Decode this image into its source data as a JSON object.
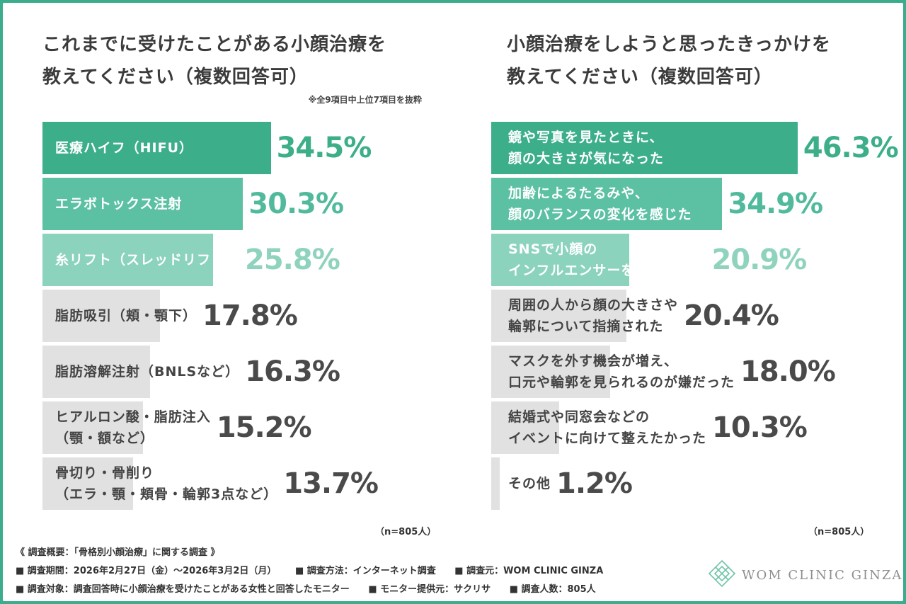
{
  "colors": {
    "border": "#3cad8c",
    "green_dark": "#3cae8a",
    "green_mid": "#5cc0a3",
    "green_light": "#8cd3bd",
    "gray": "#e1e1e1",
    "value_green_dark": "#3cae8a",
    "value_green_mid": "#52ba9c",
    "value_green_light": "#8fd3bf",
    "value_gray": "#4a4a4a"
  },
  "left": {
    "title": "これまでに受けたことがある小顔治療を\n教えてください（複数回答可）",
    "note": "※全9項目中上位7項目を抜粋",
    "sample": "（n=805人）"
  },
  "right": {
    "title": "小顔治療をしようと思ったきっかけを\n教えてください（複数回答可）",
    "sample": "（n=805人）"
  },
  "chart_data": [
    {
      "type": "bar",
      "orientation": "horizontal",
      "title": "これまでに受けたことがある小顔治療を教えてください（複数回答可）",
      "unit": "%",
      "xlim": [
        0,
        50
      ],
      "categories": [
        "医療ハイフ（HIFU）",
        "エラボトックス注射",
        "糸リフト（スレッドリフト）",
        "脂肪吸引（頬・顎下）",
        "脂肪溶解注射（BNLSなど）",
        "ヒアルロン酸・脂肪注入\n（顎・額など）",
        "骨切り・骨削り\n（エラ・顎・頬骨・輪郭3点など）"
      ],
      "values": [
        34.5,
        30.3,
        25.8,
        17.8,
        16.3,
        15.2,
        13.7
      ],
      "value_labels": [
        "34.5%",
        "30.3%",
        "25.8%",
        "17.8%",
        "16.3%",
        "15.2%",
        "13.7%"
      ],
      "n": "805"
    },
    {
      "type": "bar",
      "orientation": "horizontal",
      "title": "小顔治療をしようと思ったきっかけを教えてください（複数回答可）",
      "unit": "%",
      "xlim": [
        0,
        50
      ],
      "categories": [
        "鏡や写真を見たときに、\n顔の大きさが気になった",
        "加齢によるたるみや、\n顔のバランスの変化を感じた",
        "SNSで小顔の\nインフルエンサーを見て憧れた",
        "周囲の人から顔の大きさや\n輪郭について指摘された",
        "マスクを外す機会が増え、\n口元や輪郭を見られるのが嫌だった",
        "結婚式や同窓会などの\nイベントに向けて整えたかった",
        "その他"
      ],
      "values": [
        46.3,
        34.9,
        20.9,
        20.4,
        18.0,
        10.3,
        1.2
      ],
      "value_labels": [
        "46.3%",
        "34.9%",
        "20.9%",
        "20.4%",
        "18.0%",
        "10.3%",
        "1.2%"
      ],
      "n": "805"
    }
  ],
  "footer": {
    "heading": "《 調査概要：「骨格別小顔治療」に関する調査 》",
    "row1": [
      "■ 調査期間：2026年2月27日（金）〜2026年3月2日（月）",
      "■ 調査方法：インターネット調査",
      "■ 調査元：WOM CLINIC GINZA"
    ],
    "row2": [
      "■ 調査対象：調査回答時に小顔治療を受けたことがある女性と回答したモニター",
      "■ モニター提供元：サクリサ",
      "■ 調査人数：805人"
    ]
  },
  "brand": {
    "name": "WOM CLINIC GINZA",
    "logo_icon": "diamond-lattice-icon"
  }
}
